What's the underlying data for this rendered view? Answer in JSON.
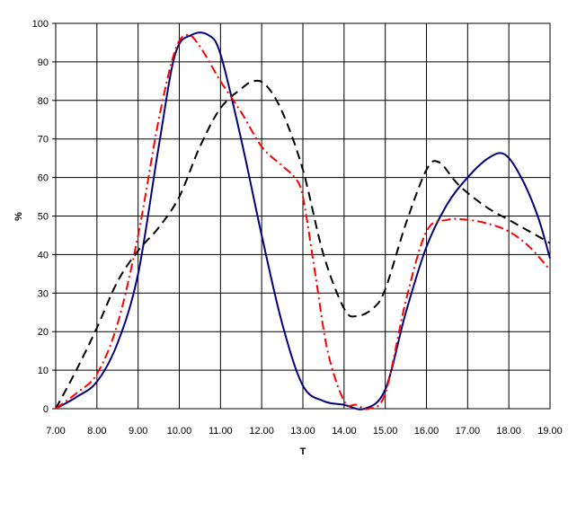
{
  "chart_data": {
    "type": "line",
    "title": "",
    "xlabel": "T",
    "ylabel": "%",
    "xlim": [
      7,
      19
    ],
    "ylim": [
      0,
      100
    ],
    "x_ticks": [
      "7.00",
      "8.00",
      "9.00",
      "10.00",
      "11.00",
      "12.00",
      "13.00",
      "14.00",
      "15.00",
      "16.00",
      "17.00",
      "18.00",
      "19.00"
    ],
    "y_ticks": [
      "0",
      "10",
      "20",
      "30",
      "40",
      "50",
      "60",
      "70",
      "80",
      "90",
      "100"
    ],
    "grid": true,
    "legend": "none",
    "series": [
      {
        "color": "#000080",
        "style": "solid",
        "points": [
          [
            7.0,
            0
          ],
          [
            7.5,
            3
          ],
          [
            8.0,
            7
          ],
          [
            8.5,
            17
          ],
          [
            9.0,
            35
          ],
          [
            9.5,
            68
          ],
          [
            9.9,
            92
          ],
          [
            10.3,
            97
          ],
          [
            10.7,
            97
          ],
          [
            11.0,
            92
          ],
          [
            11.5,
            70
          ],
          [
            12.0,
            45
          ],
          [
            12.5,
            22
          ],
          [
            13.0,
            6
          ],
          [
            13.5,
            2
          ],
          [
            14.0,
            1
          ],
          [
            14.5,
            0
          ],
          [
            15.0,
            5
          ],
          [
            15.5,
            25
          ],
          [
            16.0,
            42
          ],
          [
            16.5,
            53
          ],
          [
            17.0,
            60
          ],
          [
            17.5,
            65
          ],
          [
            17.9,
            66
          ],
          [
            18.3,
            60
          ],
          [
            18.7,
            50
          ],
          [
            19.0,
            39
          ]
        ]
      },
      {
        "color": "#000000",
        "style": "dashed",
        "points": [
          [
            7.0,
            0
          ],
          [
            7.5,
            10
          ],
          [
            8.0,
            21
          ],
          [
            8.5,
            33
          ],
          [
            9.0,
            41
          ],
          [
            9.5,
            47
          ],
          [
            10.0,
            55
          ],
          [
            10.5,
            68
          ],
          [
            11.0,
            78
          ],
          [
            11.5,
            83
          ],
          [
            11.8,
            85
          ],
          [
            12.1,
            84
          ],
          [
            12.5,
            77
          ],
          [
            13.0,
            62
          ],
          [
            13.5,
            40
          ],
          [
            14.0,
            26
          ],
          [
            14.3,
            24
          ],
          [
            14.7,
            26
          ],
          [
            15.0,
            31
          ],
          [
            15.5,
            48
          ],
          [
            16.0,
            62
          ],
          [
            16.3,
            64
          ],
          [
            16.7,
            59
          ],
          [
            17.0,
            56
          ],
          [
            17.5,
            52
          ],
          [
            18.0,
            49
          ],
          [
            18.5,
            46
          ],
          [
            19.0,
            43
          ]
        ]
      },
      {
        "color": "#ff0000",
        "style": "dash-dot",
        "points": [
          [
            7.0,
            0
          ],
          [
            7.5,
            4
          ],
          [
            8.0,
            9
          ],
          [
            8.5,
            22
          ],
          [
            9.0,
            45
          ],
          [
            9.5,
            75
          ],
          [
            9.9,
            93
          ],
          [
            10.2,
            97
          ],
          [
            10.5,
            94
          ],
          [
            11.0,
            85
          ],
          [
            11.5,
            77
          ],
          [
            12.0,
            68
          ],
          [
            12.5,
            63
          ],
          [
            12.8,
            60
          ],
          [
            13.0,
            55
          ],
          [
            13.3,
            35
          ],
          [
            13.6,
            15
          ],
          [
            14.0,
            2
          ],
          [
            14.3,
            1
          ],
          [
            14.6,
            0
          ],
          [
            15.0,
            4
          ],
          [
            15.5,
            28
          ],
          [
            16.0,
            46
          ],
          [
            16.5,
            49
          ],
          [
            17.0,
            49
          ],
          [
            17.5,
            48
          ],
          [
            18.0,
            46
          ],
          [
            18.5,
            42
          ],
          [
            19.0,
            36
          ]
        ]
      }
    ]
  }
}
